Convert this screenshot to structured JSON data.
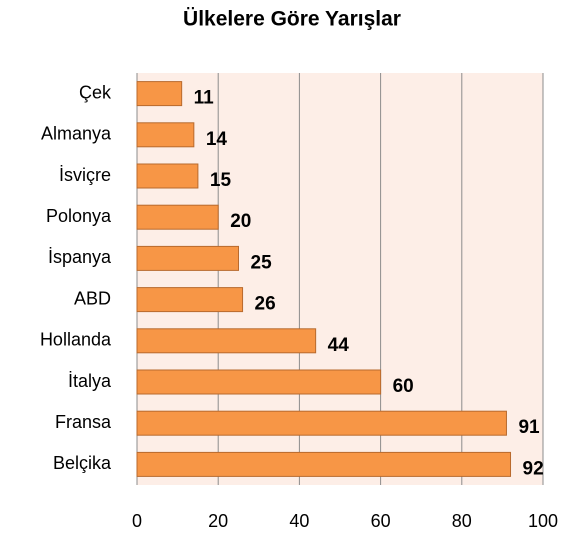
{
  "chart_data": {
    "type": "bar",
    "orientation": "horizontal",
    "title": "Ülkelere Göre Yarışlar",
    "categories": [
      "Çek",
      "Almanya",
      "İsviçre",
      "Polonya",
      "İspanya",
      "ABD",
      "Hollanda",
      "İtalya",
      "Fransa",
      "Belçika"
    ],
    "values": [
      11,
      14,
      15,
      20,
      25,
      26,
      44,
      60,
      91,
      92
    ],
    "color": "#f79646",
    "edge_color": "#b86a2e",
    "plot_background": "#fdeee7",
    "xlim": [
      0,
      100
    ],
    "xticks": [
      0,
      20,
      40,
      60,
      80,
      100
    ],
    "grid": true
  }
}
